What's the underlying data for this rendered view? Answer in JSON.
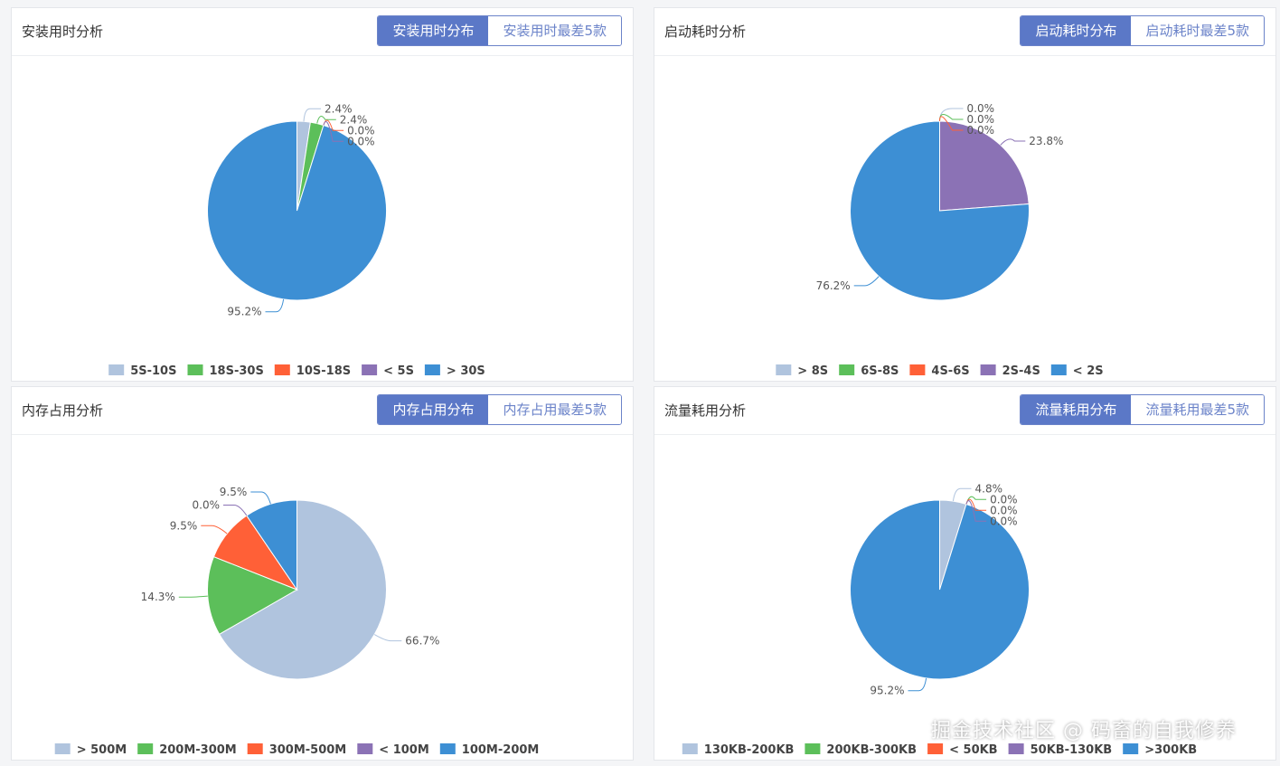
{
  "panels": [
    {
      "title": "安装用时分析",
      "tabs": [
        "安装用时分布",
        "安装用时最差5款"
      ],
      "active_tab": 0
    },
    {
      "title": "启动耗时分析",
      "tabs": [
        "启动耗时分布",
        "启动耗时最差5款"
      ],
      "active_tab": 0
    },
    {
      "title": "内存占用分析",
      "tabs": [
        "内存占用分布",
        "内存占用最差5款"
      ],
      "active_tab": 0
    },
    {
      "title": "流量耗用分析",
      "tabs": [
        "流量耗用分布",
        "流量耗用最差5款"
      ],
      "active_tab": 0
    }
  ],
  "chart_data": [
    {
      "type": "pie",
      "categories": [
        "5S-10S",
        "18S-30S",
        "10S-18S",
        "< 5S",
        "> 30S"
      ],
      "values": [
        2.4,
        2.4,
        0.0,
        0.0,
        95.2
      ],
      "labels": [
        "2.4%",
        "2.4%",
        "0.0%",
        "0.0%",
        "95.2%"
      ],
      "colors": [
        "#b0c4de",
        "#5cbf5a",
        "#ff6037",
        "#8b72b5",
        "#3d8fd4"
      ],
      "legend": "bottom"
    },
    {
      "type": "pie",
      "categories": [
        "> 8S",
        "6S-8S",
        "4S-6S",
        "2S-4S",
        "< 2S"
      ],
      "values": [
        0.0,
        0.0,
        0.0,
        23.8,
        76.2
      ],
      "labels": [
        "0.0%",
        "0.0%",
        "0.0%",
        "23.8%",
        "76.2%"
      ],
      "colors": [
        "#b0c4de",
        "#5cbf5a",
        "#ff6037",
        "#8b72b5",
        "#3d8fd4"
      ],
      "legend": "bottom"
    },
    {
      "type": "pie",
      "categories": [
        "> 500M",
        "200M-300M",
        "300M-500M",
        "< 100M",
        "100M-200M"
      ],
      "values": [
        66.7,
        14.3,
        9.5,
        0.0,
        9.5
      ],
      "labels": [
        "66.7%",
        "14.3%",
        "9.5%",
        "0.0%",
        "9.5%"
      ],
      "colors": [
        "#b0c4de",
        "#5cbf5a",
        "#ff6037",
        "#8b72b5",
        "#3d8fd4"
      ],
      "legend": "bottom"
    },
    {
      "type": "pie",
      "categories": [
        "130KB-200KB",
        "200KB-300KB",
        "< 50KB",
        "50KB-130KB",
        ">300KB"
      ],
      "values": [
        4.8,
        0.0,
        0.0,
        0.0,
        95.2
      ],
      "labels": [
        "4.8%",
        "0.0%",
        "0.0%",
        "0.0%",
        "95.2%"
      ],
      "colors": [
        "#b0c4de",
        "#5cbf5a",
        "#ff6037",
        "#8b72b5",
        "#3d8fd4"
      ],
      "legend": "bottom"
    }
  ],
  "watermark": "掘金技术社区 @ 码畜的自我修养"
}
